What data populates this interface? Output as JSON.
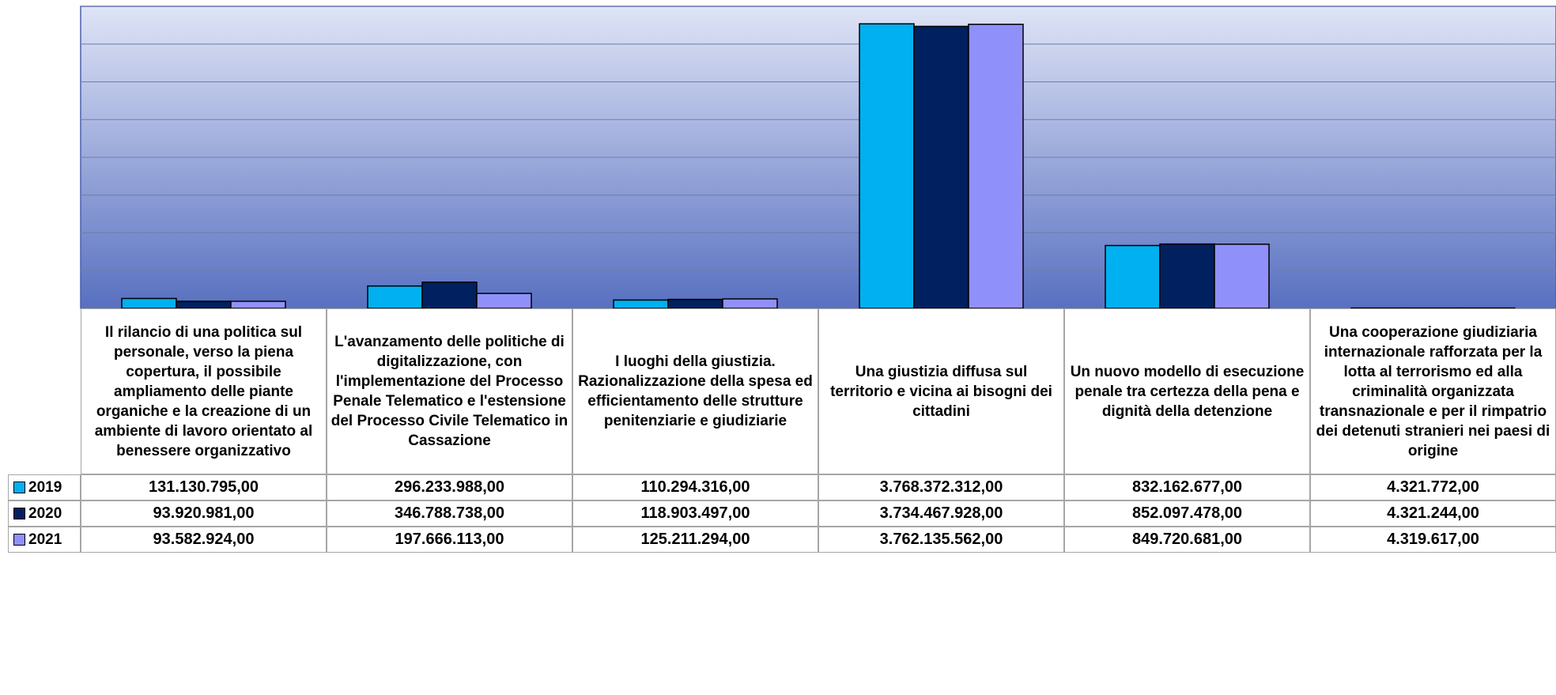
{
  "chart_data": {
    "type": "bar",
    "categories": [
      "Il rilancio di una politica sul personale, verso la piena copertura, il possibile ampliamento delle piante organiche e la creazione di un ambiente di lavoro orientato al benessere organizzativo",
      "L'avanzamento delle politiche di digitalizzazione, con l'implementazione del Processo Penale Telematico e l'estensione del Processo Civile Telematico in Cassazione",
      "I luoghi della giustizia. Razionalizzazione della spesa ed efficientamento delle strutture penitenziarie e giudiziarie",
      "Una giustizia diffusa sul territorio e vicina ai bisogni dei cittadini",
      "Un nuovo modello di esecuzione penale tra certezza della pena e dignità della detenzione",
      "Una  cooperazione giudiziaria internazionale rafforzata per la lotta al terrorismo ed alla criminalità organizzata transnazionale e per il rimpatrio dei detenuti stranieri nei paesi di origine"
    ],
    "series": [
      {
        "name": "2019",
        "color": "#00b0f0",
        "values": [
          131130795,
          296233988,
          110294316,
          3768372312,
          832162677,
          4321772
        ],
        "value_labels": [
          "131.130.795,00",
          "296.233.988,00",
          "110.294.316,00",
          "3.768.372.312,00",
          "832.162.677,00",
          "4.321.772,00"
        ]
      },
      {
        "name": "2020",
        "color": "#002060",
        "values": [
          93920981,
          346788738,
          118903497,
          3734467928,
          852097478,
          4321244
        ],
        "value_labels": [
          "93.920.981,00",
          "346.788.738,00",
          "118.903.497,00",
          "3.734.467.928,00",
          "852.097.478,00",
          "4.321.244,00"
        ]
      },
      {
        "name": "2021",
        "color": "#9090fa",
        "values": [
          93582924,
          197666113,
          125211294,
          3762135562,
          849720681,
          4319617
        ],
        "value_labels": [
          "93.582.924,00",
          "197.666.113,00",
          "125.211.294,00",
          "3.762.135.562,00",
          "849.720.681,00",
          "4.319.617,00"
        ]
      }
    ],
    "ylim": [
      0,
      4000000000
    ],
    "yticks": [
      0,
      500000000,
      1000000000,
      1500000000,
      2000000000,
      2500000000,
      3000000000,
      3500000000,
      4000000000
    ],
    "grid": true
  }
}
